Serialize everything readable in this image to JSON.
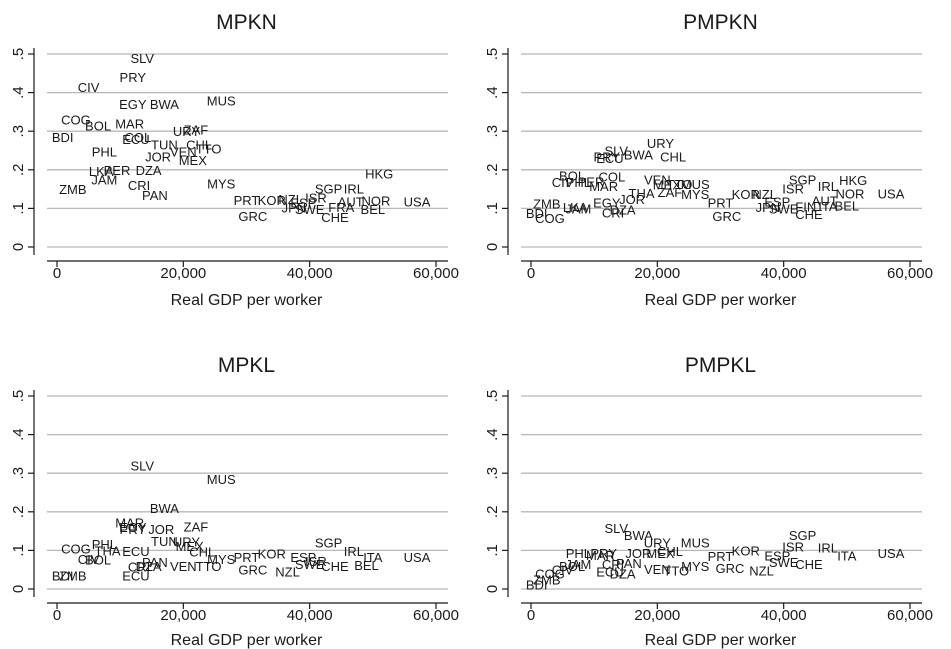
{
  "chart_data": [
    {
      "type": "scatter",
      "title": "MPKN",
      "xlabel": "Real GDP per worker",
      "ylabel": "",
      "xlim": [
        0,
        60000
      ],
      "ylim": [
        0,
        0.5
      ],
      "xticks": [
        "0",
        "20,000",
        "40,000",
        "60,000"
      ],
      "yticks": [
        "0",
        ".1",
        ".2",
        ".3",
        ".4",
        ".5"
      ],
      "grid": true,
      "marker": "country code",
      "points": [
        {
          "label": "SLV",
          "x": 13500,
          "y": 0.49
        },
        {
          "label": "CIV",
          "x": 5000,
          "y": 0.415
        },
        {
          "label": "PRY",
          "x": 12000,
          "y": 0.44
        },
        {
          "label": "MUS",
          "x": 26000,
          "y": 0.38
        },
        {
          "label": "EGY",
          "x": 12000,
          "y": 0.37
        },
        {
          "label": "BWA",
          "x": 17000,
          "y": 0.37
        },
        {
          "label": "COG",
          "x": 3000,
          "y": 0.33
        },
        {
          "label": "BOL",
          "x": 6500,
          "y": 0.315
        },
        {
          "label": "MAR",
          "x": 11500,
          "y": 0.32
        },
        {
          "label": "URY",
          "x": 20500,
          "y": 0.3
        },
        {
          "label": "ZAF",
          "x": 22000,
          "y": 0.305
        },
        {
          "label": "BDI",
          "x": 900,
          "y": 0.285
        },
        {
          "label": "ECU",
          "x": 12500,
          "y": 0.28
        },
        {
          "label": "COL",
          "x": 12800,
          "y": 0.285
        },
        {
          "label": "TUN",
          "x": 17000,
          "y": 0.265
        },
        {
          "label": "CHL",
          "x": 22500,
          "y": 0.265
        },
        {
          "label": "PHL",
          "x": 7500,
          "y": 0.248
        },
        {
          "label": "VEN",
          "x": 20000,
          "y": 0.248
        },
        {
          "label": "TTO",
          "x": 24000,
          "y": 0.255
        },
        {
          "label": "JOR",
          "x": 16000,
          "y": 0.235
        },
        {
          "label": "MEX",
          "x": 21500,
          "y": 0.225
        },
        {
          "label": "LKA",
          "x": 7000,
          "y": 0.197
        },
        {
          "label": "PER",
          "x": 9500,
          "y": 0.2
        },
        {
          "label": "DZA",
          "x": 14500,
          "y": 0.2
        },
        {
          "label": "JAM",
          "x": 7500,
          "y": 0.175
        },
        {
          "label": "MYS",
          "x": 26000,
          "y": 0.165
        },
        {
          "label": "HKG",
          "x": 51000,
          "y": 0.19
        },
        {
          "label": "CRI",
          "x": 13000,
          "y": 0.16
        },
        {
          "label": "ZMB",
          "x": 2500,
          "y": 0.15
        },
        {
          "label": "PAN",
          "x": 15500,
          "y": 0.135
        },
        {
          "label": "SGP",
          "x": 43000,
          "y": 0.152
        },
        {
          "label": "IRL",
          "x": 47000,
          "y": 0.152
        },
        {
          "label": "PRT",
          "x": 30000,
          "y": 0.122
        },
        {
          "label": "KOR",
          "x": 34000,
          "y": 0.122
        },
        {
          "label": "NZL",
          "x": 37000,
          "y": 0.125
        },
        {
          "label": "ISR",
          "x": 41000,
          "y": 0.128
        },
        {
          "label": "ESP",
          "x": 39000,
          "y": 0.115
        },
        {
          "label": "NOR",
          "x": 50500,
          "y": 0.12
        },
        {
          "label": "AUT",
          "x": 46500,
          "y": 0.118
        },
        {
          "label": "USA",
          "x": 57000,
          "y": 0.118
        },
        {
          "label": "JPN",
          "x": 37500,
          "y": 0.102
        },
        {
          "label": "SWE",
          "x": 40000,
          "y": 0.098
        },
        {
          "label": "FRA",
          "x": 45000,
          "y": 0.103
        },
        {
          "label": "BEL",
          "x": 50000,
          "y": 0.098
        },
        {
          "label": "CHE",
          "x": 44000,
          "y": 0.078
        },
        {
          "label": "GRC",
          "x": 31000,
          "y": 0.08
        }
      ]
    },
    {
      "type": "scatter",
      "title": "PMPKN",
      "xlabel": "Real GDP per worker",
      "ylabel": "",
      "xlim": [
        0,
        60000
      ],
      "ylim": [
        0,
        0.5
      ],
      "xticks": [
        "0",
        "20,000",
        "40,000",
        "60,000"
      ],
      "yticks": [
        "0",
        ".1",
        ".2",
        ".3",
        ".4",
        ".5"
      ],
      "grid": true,
      "marker": "country code",
      "points": [
        {
          "label": "URY",
          "x": 20500,
          "y": 0.27
        },
        {
          "label": "CHL",
          "x": 22500,
          "y": 0.235
        },
        {
          "label": "BWA",
          "x": 17000,
          "y": 0.24
        },
        {
          "label": "SLV",
          "x": 13500,
          "y": 0.25
        },
        {
          "label": "PRY",
          "x": 12000,
          "y": 0.235
        },
        {
          "label": "ECU",
          "x": 12500,
          "y": 0.23
        },
        {
          "label": "BOL",
          "x": 6500,
          "y": 0.185
        },
        {
          "label": "COL",
          "x": 12800,
          "y": 0.183
        },
        {
          "label": "CIV",
          "x": 5000,
          "y": 0.168
        },
        {
          "label": "PHL",
          "x": 7500,
          "y": 0.168
        },
        {
          "label": "PER",
          "x": 9500,
          "y": 0.17
        },
        {
          "label": "MAR",
          "x": 11500,
          "y": 0.158
        },
        {
          "label": "VEN",
          "x": 20000,
          "y": 0.175
        },
        {
          "label": "MEX",
          "x": 21500,
          "y": 0.162
        },
        {
          "label": "TTO",
          "x": 23500,
          "y": 0.163
        },
        {
          "label": "MUS",
          "x": 26000,
          "y": 0.163
        },
        {
          "label": "THA",
          "x": 17500,
          "y": 0.14
        },
        {
          "label": "ZAF",
          "x": 22000,
          "y": 0.143
        },
        {
          "label": "MYS",
          "x": 26000,
          "y": 0.137
        },
        {
          "label": "HKG",
          "x": 51000,
          "y": 0.173
        },
        {
          "label": "SGP",
          "x": 43000,
          "y": 0.175
        },
        {
          "label": "ISR",
          "x": 41500,
          "y": 0.152
        },
        {
          "label": "IRL",
          "x": 47000,
          "y": 0.158
        },
        {
          "label": "KOR",
          "x": 34000,
          "y": 0.137
        },
        {
          "label": "NZL",
          "x": 37000,
          "y": 0.137
        },
        {
          "label": "NOR",
          "x": 50500,
          "y": 0.138
        },
        {
          "label": "USA",
          "x": 57000,
          "y": 0.138
        },
        {
          "label": "JOR",
          "x": 16000,
          "y": 0.125
        },
        {
          "label": "PRT",
          "x": 30000,
          "y": 0.115
        },
        {
          "label": "ESP",
          "x": 39000,
          "y": 0.118
        },
        {
          "label": "AUT",
          "x": 46500,
          "y": 0.12
        },
        {
          "label": "JPN",
          "x": 37500,
          "y": 0.103
        },
        {
          "label": "SWE",
          "x": 40000,
          "y": 0.1
        },
        {
          "label": "FIN",
          "x": 43500,
          "y": 0.105
        },
        {
          "label": "BEL",
          "x": 50000,
          "y": 0.108
        },
        {
          "label": "ITA",
          "x": 47000,
          "y": 0.106
        },
        {
          "label": "CHE",
          "x": 44000,
          "y": 0.085
        },
        {
          "label": "EGY",
          "x": 12000,
          "y": 0.115
        },
        {
          "label": "ZMB",
          "x": 2500,
          "y": 0.113
        },
        {
          "label": "LKA",
          "x": 7000,
          "y": 0.103
        },
        {
          "label": "JAM",
          "x": 7500,
          "y": 0.1
        },
        {
          "label": "DZA",
          "x": 14500,
          "y": 0.097
        },
        {
          "label": "CRI",
          "x": 13000,
          "y": 0.09
        },
        {
          "label": "GRC",
          "x": 31000,
          "y": 0.08
        },
        {
          "label": "BDI",
          "x": 900,
          "y": 0.088
        },
        {
          "label": "COG",
          "x": 3000,
          "y": 0.075
        }
      ]
    },
    {
      "type": "scatter",
      "title": "MPKL",
      "xlabel": "Real GDP per worker",
      "ylabel": "",
      "xlim": [
        0,
        60000
      ],
      "ylim": [
        0,
        0.5
      ],
      "xticks": [
        "0",
        "20,000",
        "40,000",
        "60,000"
      ],
      "yticks": [
        "0",
        ".1",
        ".2",
        ".3",
        ".4",
        ".5"
      ],
      "grid": true,
      "marker": "country code",
      "points": [
        {
          "label": "SLV",
          "x": 13500,
          "y": 0.32
        },
        {
          "label": "MUS",
          "x": 26000,
          "y": 0.285
        },
        {
          "label": "BWA",
          "x": 17000,
          "y": 0.21
        },
        {
          "label": "MAR",
          "x": 11500,
          "y": 0.172
        },
        {
          "label": "ZAF",
          "x": 22000,
          "y": 0.162
        },
        {
          "label": "EGY",
          "x": 12000,
          "y": 0.16
        },
        {
          "label": "PRY",
          "x": 12000,
          "y": 0.155
        },
        {
          "label": "JOR",
          "x": 16500,
          "y": 0.155
        },
        {
          "label": "TUN",
          "x": 17000,
          "y": 0.125
        },
        {
          "label": "URY",
          "x": 20500,
          "y": 0.123
        },
        {
          "label": "MEX",
          "x": 21000,
          "y": 0.112
        },
        {
          "label": "CHL",
          "x": 23000,
          "y": 0.097
        },
        {
          "label": "SGP",
          "x": 43000,
          "y": 0.12
        },
        {
          "label": "PHL",
          "x": 7500,
          "y": 0.117
        },
        {
          "label": "THA",
          "x": 8000,
          "y": 0.1
        },
        {
          "label": "COG",
          "x": 3000,
          "y": 0.105
        },
        {
          "label": "IRL",
          "x": 47000,
          "y": 0.098
        },
        {
          "label": "KOR",
          "x": 34000,
          "y": 0.092
        },
        {
          "label": "ECU",
          "x": 12500,
          "y": 0.098
        },
        {
          "label": "MYS",
          "x": 26000,
          "y": 0.078
        },
        {
          "label": "PRT",
          "x": 30000,
          "y": 0.083
        },
        {
          "label": "ESP",
          "x": 39000,
          "y": 0.083
        },
        {
          "label": "ITA",
          "x": 50000,
          "y": 0.083
        },
        {
          "label": "USA",
          "x": 57000,
          "y": 0.083
        },
        {
          "label": "BOL",
          "x": 6500,
          "y": 0.077
        },
        {
          "label": "CIV",
          "x": 5000,
          "y": 0.078
        },
        {
          "label": "PAN",
          "x": 15500,
          "y": 0.07
        },
        {
          "label": "CRI",
          "x": 13000,
          "y": 0.058
        },
        {
          "label": "DZA",
          "x": 14500,
          "y": 0.06
        },
        {
          "label": "VEN",
          "x": 20000,
          "y": 0.06
        },
        {
          "label": "TTO",
          "x": 24000,
          "y": 0.06
        },
        {
          "label": "GRC",
          "x": 31000,
          "y": 0.05
        },
        {
          "label": "NZL",
          "x": 36500,
          "y": 0.045
        },
        {
          "label": "ISR",
          "x": 41000,
          "y": 0.072
        },
        {
          "label": "SWE",
          "x": 40000,
          "y": 0.065
        },
        {
          "label": "CHE",
          "x": 44000,
          "y": 0.06
        },
        {
          "label": "BEL",
          "x": 49000,
          "y": 0.062
        },
        {
          "label": "BDI",
          "x": 900,
          "y": 0.035
        },
        {
          "label": "ZMB",
          "x": 2500,
          "y": 0.035
        },
        {
          "label": "ECU",
          "x": 12500,
          "y": 0.035
        }
      ]
    },
    {
      "type": "scatter",
      "title": "PMPKL",
      "xlabel": "Real GDP per worker",
      "ylabel": "",
      "xlim": [
        0,
        60000
      ],
      "ylim": [
        0,
        0.5
      ],
      "xticks": [
        "0",
        "20,000",
        "40,000",
        "60,000"
      ],
      "yticks": [
        "0",
        ".1",
        ".2",
        ".3",
        ".4",
        ".5"
      ],
      "grid": true,
      "marker": "country code",
      "points": [
        {
          "label": "SLV",
          "x": 13500,
          "y": 0.158
        },
        {
          "label": "BWA",
          "x": 17000,
          "y": 0.14
        },
        {
          "label": "URY",
          "x": 20000,
          "y": 0.12
        },
        {
          "label": "MUS",
          "x": 26000,
          "y": 0.12
        },
        {
          "label": "SGP",
          "x": 43000,
          "y": 0.14
        },
        {
          "label": "ISR",
          "x": 41500,
          "y": 0.11
        },
        {
          "label": "IRL",
          "x": 47000,
          "y": 0.108
        },
        {
          "label": "KOR",
          "x": 34000,
          "y": 0.1
        },
        {
          "label": "USA",
          "x": 57000,
          "y": 0.093
        },
        {
          "label": "CHL",
          "x": 22000,
          "y": 0.098
        },
        {
          "label": "MEX",
          "x": 20500,
          "y": 0.093
        },
        {
          "label": "JOR",
          "x": 17000,
          "y": 0.093
        },
        {
          "label": "PRY",
          "x": 11500,
          "y": 0.093
        },
        {
          "label": "PHL",
          "x": 7500,
          "y": 0.093
        },
        {
          "label": "MAR",
          "x": 11000,
          "y": 0.088
        },
        {
          "label": "PRT",
          "x": 30000,
          "y": 0.085
        },
        {
          "label": "ESP",
          "x": 39000,
          "y": 0.087
        },
        {
          "label": "ITA",
          "x": 50000,
          "y": 0.087
        },
        {
          "label": "MYS",
          "x": 26000,
          "y": 0.06
        },
        {
          "label": "GRC",
          "x": 31500,
          "y": 0.055
        },
        {
          "label": "SWE",
          "x": 40000,
          "y": 0.07
        },
        {
          "label": "CHE",
          "x": 44000,
          "y": 0.065
        },
        {
          "label": "NZL",
          "x": 36500,
          "y": 0.048
        },
        {
          "label": "CRI",
          "x": 13000,
          "y": 0.065
        },
        {
          "label": "PAN",
          "x": 15500,
          "y": 0.068
        },
        {
          "label": "JAM",
          "x": 7500,
          "y": 0.065
        },
        {
          "label": "VEN",
          "x": 20000,
          "y": 0.052
        },
        {
          "label": "TTO",
          "x": 23000,
          "y": 0.048
        },
        {
          "label": "ECU",
          "x": 12500,
          "y": 0.045
        },
        {
          "label": "DZA",
          "x": 14500,
          "y": 0.04
        },
        {
          "label": "BOL",
          "x": 6500,
          "y": 0.06
        },
        {
          "label": "CIV",
          "x": 5000,
          "y": 0.05
        },
        {
          "label": "COG",
          "x": 3000,
          "y": 0.04
        },
        {
          "label": "ZMB",
          "x": 2500,
          "y": 0.025
        },
        {
          "label": "BDI",
          "x": 900,
          "y": 0.012
        }
      ]
    }
  ]
}
